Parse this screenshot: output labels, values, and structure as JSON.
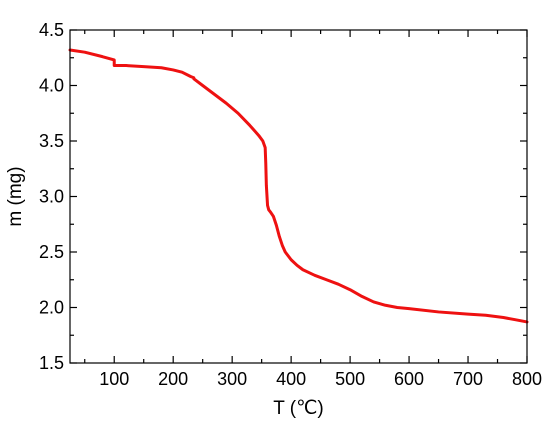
{
  "chart_data": {
    "type": "line",
    "xlabel": "T (℃)",
    "ylabel": "m (mg)",
    "xlim": [
      25,
      800
    ],
    "ylim": [
      1.5,
      4.5
    ],
    "xticks": [
      100,
      200,
      300,
      400,
      500,
      600,
      700,
      800
    ],
    "yticks": [
      1.5,
      2.0,
      2.5,
      3.0,
      3.5,
      4.0,
      4.5
    ],
    "xtick_labels": [
      "100",
      "200",
      "300",
      "400",
      "500",
      "600",
      "700",
      "800"
    ],
    "ytick_labels": [
      "1.5",
      "2.0",
      "2.5",
      "3.0",
      "3.5",
      "4.0",
      "4.5"
    ],
    "x_minor_step": 50,
    "y_minor_step": 0.25,
    "grid": false,
    "series": [
      {
        "color": "#ee1111",
        "x": [
          25,
          50,
          80,
          100,
          100,
          120,
          150,
          180,
          200,
          215,
          230,
          235,
          235,
          250,
          270,
          290,
          310,
          330,
          345,
          352,
          356,
          357,
          358,
          360,
          362,
          365,
          370,
          375,
          380,
          385,
          390,
          400,
          410,
          420,
          440,
          460,
          480,
          500,
          520,
          540,
          560,
          580,
          600,
          650,
          700,
          730,
          760,
          780,
          800
        ],
        "y": [
          4.32,
          4.3,
          4.26,
          4.23,
          4.18,
          4.18,
          4.17,
          4.16,
          4.14,
          4.12,
          4.08,
          4.07,
          4.06,
          4.0,
          3.92,
          3.84,
          3.75,
          3.64,
          3.55,
          3.5,
          3.44,
          3.3,
          3.1,
          2.92,
          2.88,
          2.86,
          2.82,
          2.74,
          2.64,
          2.56,
          2.5,
          2.43,
          2.38,
          2.34,
          2.29,
          2.25,
          2.21,
          2.16,
          2.1,
          2.05,
          2.02,
          2.0,
          1.99,
          1.96,
          1.94,
          1.93,
          1.91,
          1.89,
          1.87
        ]
      }
    ]
  }
}
